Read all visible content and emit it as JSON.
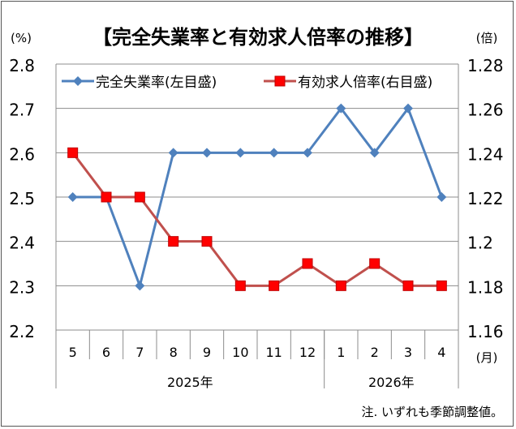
{
  "chart_data": {
    "type": "line",
    "title": "【完全失業率と有効求人倍率の推移】",
    "left_unit": "(%)",
    "right_unit": "(倍)",
    "month_unit": "(月)",
    "categories": [
      "5",
      "6",
      "7",
      "8",
      "9",
      "10",
      "11",
      "12",
      "1",
      "2",
      "3",
      "4"
    ],
    "year_groups": [
      {
        "label": "2025年",
        "span": 8
      },
      {
        "label": "2026年",
        "span": 4
      }
    ],
    "left_axis": {
      "ylim": [
        2.2,
        2.8
      ],
      "ticks": [
        "2.2",
        "2.3",
        "2.4",
        "2.5",
        "2.6",
        "2.7",
        "2.8"
      ]
    },
    "right_axis": {
      "ylim": [
        1.16,
        1.28
      ],
      "ticks": [
        "1.16",
        "1.18",
        "1.2",
        "1.22",
        "1.24",
        "1.26",
        "1.28"
      ]
    },
    "series": [
      {
        "name": "完全失業率(左目盛)",
        "axis": "left",
        "color": "#4F81BD",
        "marker": "diamond",
        "values": [
          2.5,
          2.5,
          2.3,
          2.6,
          2.6,
          2.6,
          2.6,
          2.6,
          2.7,
          2.6,
          2.7,
          2.5
        ]
      },
      {
        "name": "有効求人倍率(右目盛)",
        "axis": "right",
        "color": "#C0504D",
        "marker": "square",
        "values": [
          1.24,
          1.22,
          1.22,
          1.2,
          1.2,
          1.18,
          1.18,
          1.19,
          1.18,
          1.19,
          1.18,
          1.18
        ]
      }
    ],
    "grid": "horizontal",
    "legend_position": "top",
    "note": "注. いずれも季節調整値。"
  }
}
